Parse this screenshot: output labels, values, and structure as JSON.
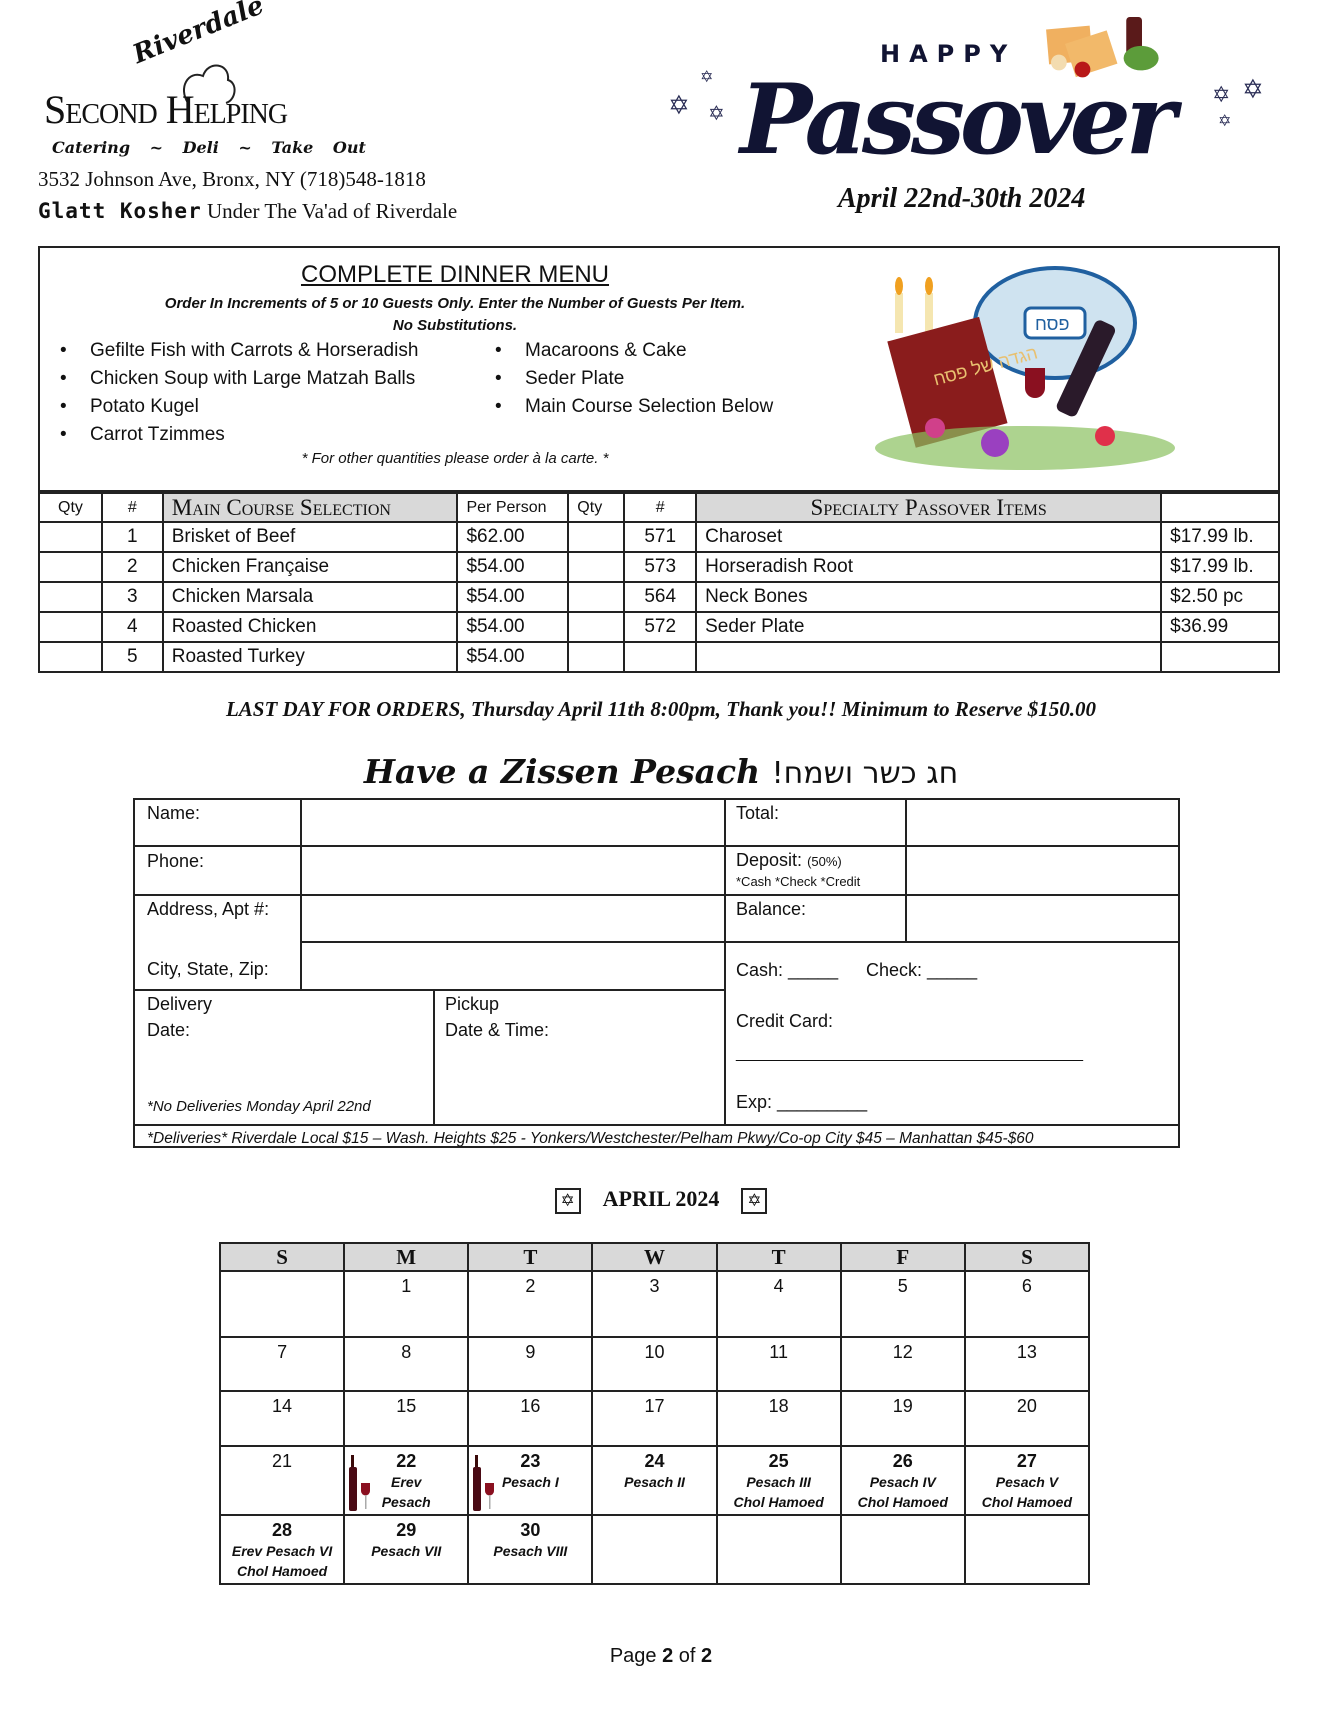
{
  "header": {
    "logo": {
      "top_script": "Riverdale",
      "name": "Second Helping",
      "tagline": [
        "Catering",
        "~",
        "Deli",
        "~",
        "Take Out"
      ]
    },
    "address": "3532 Johnson Ave, Bronx, NY (718)548-1818",
    "kosher_bold": "Glatt Kosher",
    "kosher_rest": "Under The Va'ad of Riverdale",
    "banner": {
      "happy": "HAPPY",
      "passover": "Passover",
      "dates": "April 22nd-30th 2024"
    }
  },
  "menu": {
    "title": "COMPLETE DINNER MENU",
    "note1": "Order In Increments of 5 or 10 Guests Only.  Enter the Number of Guests Per Item.",
    "note2": "No Substitutions.",
    "items_left": [
      "Gefilte Fish with Carrots & Horseradish",
      "Chicken Soup with Large Matzah Balls",
      "Potato Kugel",
      "Carrot Tzimmes"
    ],
    "items_right": [
      "Macaroons & Cake",
      "Seder Plate",
      "Main Course Selection Below"
    ],
    "footer": "* For other quantities please order à la carte. *",
    "image_text": [
      "הגדה של פסח",
      "פסח"
    ]
  },
  "table": {
    "headers": {
      "qty": "Qty",
      "num": "#",
      "main": "Main Course Selection",
      "per_person": "Per Person",
      "qty2": "Qty",
      "num2": "#",
      "specialty": "Specialty Passover Items"
    },
    "rows": [
      {
        "num": "1",
        "item": "Brisket of Beef",
        "price": "$62.00",
        "snum": "571",
        "sitem": "Charoset",
        "sprice": "$17.99 lb."
      },
      {
        "num": "2",
        "item": "Chicken Française",
        "price": "$54.00",
        "snum": "573",
        "sitem": "Horseradish Root",
        "sprice": "$17.99 lb."
      },
      {
        "num": "3",
        "item": "Chicken Marsala",
        "price": "$54.00",
        "snum": "564",
        "sitem": "Neck Bones",
        "sprice": "$2.50 pc"
      },
      {
        "num": "4",
        "item": "Roasted Chicken",
        "price": "$54.00",
        "snum": "572",
        "sitem": "Seder Plate",
        "sprice": "$36.99"
      },
      {
        "num": "5",
        "item": "Roasted Turkey",
        "price": "$54.00",
        "snum": "",
        "sitem": "",
        "sprice": ""
      }
    ]
  },
  "last_day": "LAST DAY FOR ORDERS, Thursday April 11th 8:00pm, Thank you!! Minimum to Reserve $150.00",
  "greeting": {
    "english": "Have a Zissen Pesach",
    "hebrew": "!חג כשר ושמח"
  },
  "form": {
    "name": "Name:",
    "phone": "Phone:",
    "address": "Address, Apt #:",
    "city": "City, State, Zip:",
    "delivery": "Delivery",
    "delivery_date": "Date:",
    "no_delivery": "*No Deliveries Monday April 22nd",
    "pickup": "Pickup",
    "pickup_date": "Date & Time:",
    "total": "Total:",
    "deposit": "Deposit:",
    "deposit_pct": "(50%)",
    "deposit_methods": "*Cash *Check *Credit",
    "balance": "Balance:",
    "cash": "Cash: _____",
    "check": "Check: _____",
    "credit": "Credit Card:",
    "credit_line": "_______________________________________",
    "exp": "Exp: _________",
    "deliveries": "*Deliveries* Riverdale Local $15 – Wash. Heights $25 - Yonkers/Westchester/Pelham Pkwy/Co-op City $45 – Manhattan $45-$60"
  },
  "calendar": {
    "title": "APRIL 2024",
    "days": [
      "S",
      "M",
      "T",
      "W",
      "T",
      "F",
      "S"
    ],
    "weeks": [
      [
        {
          "d": ""
        },
        {
          "d": "1"
        },
        {
          "d": "2"
        },
        {
          "d": "3"
        },
        {
          "d": "4"
        },
        {
          "d": "5"
        },
        {
          "d": "6"
        }
      ],
      [
        {
          "d": "7"
        },
        {
          "d": "8"
        },
        {
          "d": "9"
        },
        {
          "d": "10"
        },
        {
          "d": "11"
        },
        {
          "d": "12"
        },
        {
          "d": "13"
        }
      ],
      [
        {
          "d": "14"
        },
        {
          "d": "15"
        },
        {
          "d": "16"
        },
        {
          "d": "17"
        },
        {
          "d": "18"
        },
        {
          "d": "19"
        },
        {
          "d": "20"
        }
      ],
      [
        {
          "d": "21"
        },
        {
          "d": "22",
          "e": [
            "Erev",
            "Pesach"
          ],
          "wine": true
        },
        {
          "d": "23",
          "e": [
            "Pesach I"
          ],
          "wine": true
        },
        {
          "d": "24",
          "e": [
            "Pesach II"
          ]
        },
        {
          "d": "25",
          "e": [
            "Pesach III",
            "Chol Hamoed"
          ]
        },
        {
          "d": "26",
          "e": [
            "Pesach IV",
            "Chol Hamoed"
          ]
        },
        {
          "d": "27",
          "e": [
            "Pesach V",
            "Chol Hamoed"
          ]
        }
      ],
      [
        {
          "d": "28",
          "e": [
            "Erev Pesach VI",
            "Chol Hamoed"
          ]
        },
        {
          "d": "29",
          "e": [
            "Pesach VII"
          ]
        },
        {
          "d": "30",
          "e": [
            "Pesach VIII"
          ]
        },
        {
          "d": ""
        },
        {
          "d": ""
        },
        {
          "d": ""
        },
        {
          "d": ""
        }
      ]
    ]
  },
  "page": {
    "prefix": "Page",
    "current": "2",
    "of": "of",
    "total": "2"
  }
}
